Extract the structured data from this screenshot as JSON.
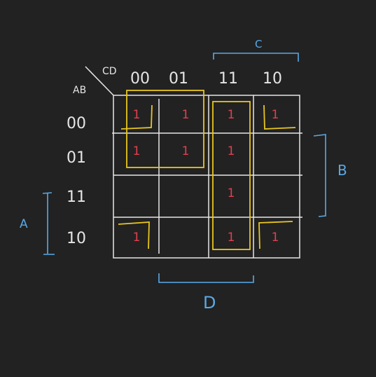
{
  "diagram": {
    "type": "karnaugh-map",
    "variables": {
      "row_label": "AB",
      "col_label": "CD"
    },
    "column_headers": [
      "00",
      "01",
      "11",
      "10"
    ],
    "row_headers": [
      "00",
      "01",
      "11",
      "10"
    ],
    "cells": [
      [
        "1",
        "1",
        "1",
        "1"
      ],
      [
        "1",
        "1",
        "1",
        ""
      ],
      [
        "",
        "",
        "1",
        ""
      ],
      [
        "1",
        "",
        "1",
        "1"
      ]
    ],
    "brackets": {
      "top": "C",
      "right": "B",
      "left": "A",
      "bottom": "D"
    },
    "colors": {
      "background": "#222222",
      "grid": "#e6e6e6",
      "text": "#e6e6e6",
      "ones": "#e0404f",
      "groups": "#e8c61e",
      "brackets": "#5aa9e6"
    }
  }
}
